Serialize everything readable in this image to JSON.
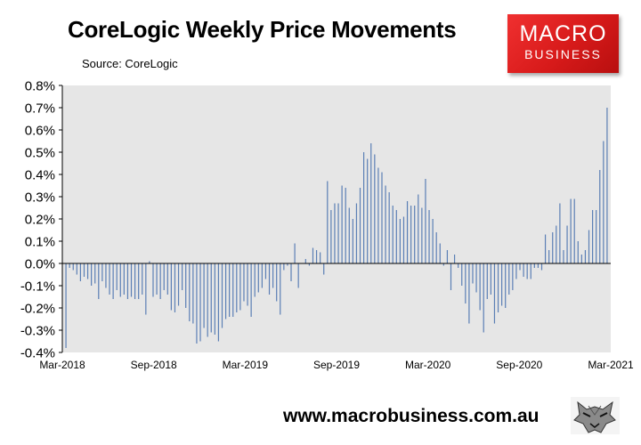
{
  "header": {
    "title": "CoreLogic Weekly Price Movements",
    "source": "Source: CoreLogic"
  },
  "logo": {
    "line1": "MACRO",
    "line2": "BUSINESS"
  },
  "footer": {
    "url": "www.macrobusiness.com.au"
  },
  "colors": {
    "bar": "#5b7fb5",
    "plot_background": "#e6e6e6",
    "logo_red": "#d71a1a"
  },
  "chart_data": {
    "type": "bar",
    "title": "CoreLogic Weekly Price Movements",
    "xlabel": "",
    "ylabel": "",
    "ylim": [
      -0.4,
      0.8
    ],
    "y_ticks": [
      "0.8%",
      "0.7%",
      "0.6%",
      "0.5%",
      "0.4%",
      "0.3%",
      "0.2%",
      "0.1%",
      "0.0%",
      "-0.1%",
      "-0.2%",
      "-0.3%",
      "-0.4%"
    ],
    "x_tick_labels": [
      "Mar-2018",
      "Sep-2018",
      "Mar-2019",
      "Sep-2019",
      "Mar-2020",
      "Sep-2020",
      "Mar-2021"
    ],
    "x_range": [
      "Mar-2018",
      "Mar-2021"
    ],
    "grid": false,
    "legend": "none",
    "values": [
      -0.38,
      -0.02,
      -0.03,
      -0.05,
      -0.08,
      -0.06,
      -0.07,
      -0.1,
      -0.09,
      -0.16,
      -0.08,
      -0.11,
      -0.14,
      -0.16,
      -0.12,
      -0.15,
      -0.14,
      -0.16,
      -0.15,
      -0.16,
      -0.16,
      -0.14,
      -0.23,
      0.01,
      -0.15,
      -0.14,
      -0.16,
      -0.12,
      -0.14,
      -0.21,
      -0.22,
      -0.19,
      -0.12,
      -0.2,
      -0.26,
      -0.27,
      -0.36,
      -0.35,
      -0.29,
      -0.33,
      -0.31,
      -0.32,
      -0.35,
      -0.29,
      -0.25,
      -0.24,
      -0.24,
      -0.22,
      -0.21,
      -0.17,
      -0.19,
      -0.24,
      -0.15,
      -0.13,
      -0.11,
      -0.07,
      -0.14,
      -0.11,
      -0.17,
      -0.23,
      -0.03,
      -0.01,
      -0.08,
      0.09,
      -0.11,
      0.0,
      0.02,
      -0.01,
      0.07,
      0.06,
      0.05,
      -0.05,
      0.37,
      0.24,
      0.27,
      0.27,
      0.35,
      0.34,
      0.25,
      0.2,
      0.27,
      0.34,
      0.5,
      0.47,
      0.54,
      0.49,
      0.43,
      0.41,
      0.35,
      0.32,
      0.26,
      0.24,
      0.2,
      0.21,
      0.28,
      0.26,
      0.26,
      0.31,
      0.25,
      0.38,
      0.24,
      0.2,
      0.14,
      0.09,
      -0.01,
      0.06,
      -0.12,
      0.04,
      -0.02,
      -0.1,
      -0.18,
      -0.27,
      -0.09,
      -0.13,
      -0.21,
      -0.31,
      -0.16,
      -0.14,
      -0.27,
      -0.22,
      -0.19,
      -0.2,
      -0.14,
      -0.12,
      -0.07,
      -0.03,
      -0.06,
      -0.07,
      -0.07,
      -0.02,
      -0.02,
      -0.03,
      0.13,
      0.06,
      0.14,
      0.17,
      0.27,
      0.06,
      0.17,
      0.29,
      0.29,
      0.1,
      0.04,
      0.06,
      0.15,
      0.24,
      0.24,
      0.42,
      0.55,
      0.7
    ]
  }
}
